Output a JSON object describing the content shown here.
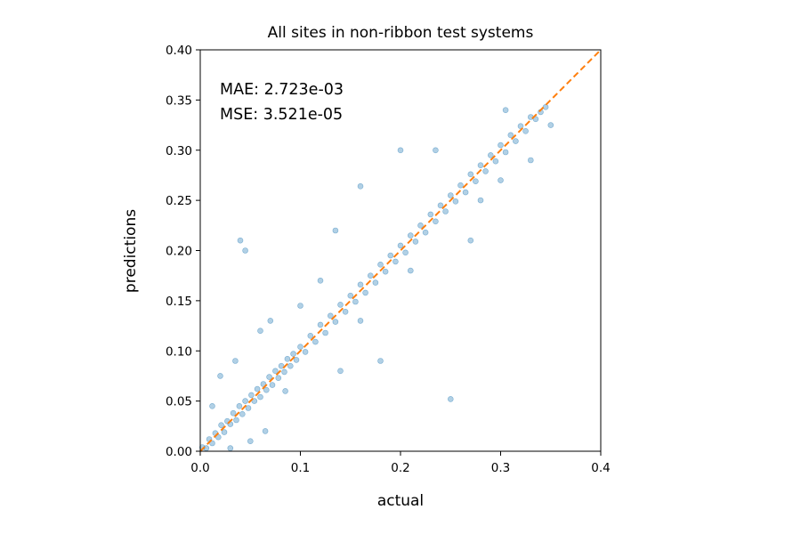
{
  "chart_data": {
    "type": "scatter",
    "title": "All sites in non-ribbon test systems",
    "xlabel": "actual",
    "ylabel": "predictions",
    "xlim": [
      0.0,
      0.4
    ],
    "ylim": [
      0.0,
      0.4
    ],
    "xticks": [
      "0.0",
      "0.1",
      "0.2",
      "0.3",
      "0.4"
    ],
    "xtick_values": [
      0.0,
      0.1,
      0.2,
      0.3,
      0.4
    ],
    "yticks": [
      "0.00",
      "0.05",
      "0.10",
      "0.15",
      "0.20",
      "0.25",
      "0.30",
      "0.35",
      "0.40"
    ],
    "ytick_values": [
      0.0,
      0.05,
      0.1,
      0.15,
      0.2,
      0.25,
      0.3,
      0.35,
      0.4
    ],
    "annotations": [
      "MAE: 2.723e-03",
      "MSE: 3.521e-05"
    ],
    "reference_line": {
      "style": "dashed",
      "color": "#ff7f0e",
      "from": [
        0.0,
        0.0
      ],
      "to": [
        0.4,
        0.4
      ]
    },
    "grid": false,
    "legend": "none",
    "marker_color": "#1f77b4",
    "points": [
      [
        0.002,
        0.004
      ],
      [
        0.006,
        0.003
      ],
      [
        0.009,
        0.012
      ],
      [
        0.012,
        0.008
      ],
      [
        0.015,
        0.018
      ],
      [
        0.018,
        0.014
      ],
      [
        0.021,
        0.026
      ],
      [
        0.024,
        0.019
      ],
      [
        0.027,
        0.03
      ],
      [
        0.03,
        0.027
      ],
      [
        0.033,
        0.038
      ],
      [
        0.036,
        0.031
      ],
      [
        0.039,
        0.045
      ],
      [
        0.042,
        0.037
      ],
      [
        0.045,
        0.05
      ],
      [
        0.048,
        0.043
      ],
      [
        0.051,
        0.056
      ],
      [
        0.054,
        0.05
      ],
      [
        0.057,
        0.062
      ],
      [
        0.06,
        0.054
      ],
      [
        0.063,
        0.067
      ],
      [
        0.066,
        0.061
      ],
      [
        0.069,
        0.074
      ],
      [
        0.072,
        0.066
      ],
      [
        0.075,
        0.08
      ],
      [
        0.078,
        0.073
      ],
      [
        0.081,
        0.085
      ],
      [
        0.084,
        0.079
      ],
      [
        0.087,
        0.092
      ],
      [
        0.09,
        0.085
      ],
      [
        0.093,
        0.097
      ],
      [
        0.096,
        0.091
      ],
      [
        0.1,
        0.104
      ],
      [
        0.105,
        0.099
      ],
      [
        0.11,
        0.115
      ],
      [
        0.115,
        0.109
      ],
      [
        0.12,
        0.126
      ],
      [
        0.125,
        0.118
      ],
      [
        0.13,
        0.135
      ],
      [
        0.135,
        0.129
      ],
      [
        0.14,
        0.146
      ],
      [
        0.145,
        0.139
      ],
      [
        0.15,
        0.155
      ],
      [
        0.155,
        0.149
      ],
      [
        0.16,
        0.166
      ],
      [
        0.165,
        0.158
      ],
      [
        0.17,
        0.175
      ],
      [
        0.175,
        0.168
      ],
      [
        0.18,
        0.186
      ],
      [
        0.185,
        0.179
      ],
      [
        0.19,
        0.195
      ],
      [
        0.195,
        0.189
      ],
      [
        0.2,
        0.205
      ],
      [
        0.205,
        0.198
      ],
      [
        0.21,
        0.215
      ],
      [
        0.215,
        0.209
      ],
      [
        0.22,
        0.225
      ],
      [
        0.225,
        0.218
      ],
      [
        0.23,
        0.236
      ],
      [
        0.235,
        0.229
      ],
      [
        0.24,
        0.245
      ],
      [
        0.245,
        0.239
      ],
      [
        0.25,
        0.255
      ],
      [
        0.255,
        0.249
      ],
      [
        0.26,
        0.265
      ],
      [
        0.265,
        0.258
      ],
      [
        0.27,
        0.276
      ],
      [
        0.275,
        0.269
      ],
      [
        0.28,
        0.285
      ],
      [
        0.285,
        0.279
      ],
      [
        0.29,
        0.295
      ],
      [
        0.295,
        0.289
      ],
      [
        0.3,
        0.305
      ],
      [
        0.305,
        0.298
      ],
      [
        0.31,
        0.315
      ],
      [
        0.315,
        0.309
      ],
      [
        0.32,
        0.324
      ],
      [
        0.325,
        0.319
      ],
      [
        0.33,
        0.333
      ],
      [
        0.335,
        0.331
      ],
      [
        0.34,
        0.338
      ],
      [
        0.345,
        0.343
      ],
      [
        0.35,
        0.325
      ],
      [
        0.012,
        0.045
      ],
      [
        0.02,
        0.075
      ],
      [
        0.035,
        0.09
      ],
      [
        0.045,
        0.2
      ],
      [
        0.04,
        0.21
      ],
      [
        0.06,
        0.12
      ],
      [
        0.085,
        0.06
      ],
      [
        0.12,
        0.17
      ],
      [
        0.135,
        0.22
      ],
      [
        0.16,
        0.264
      ],
      [
        0.18,
        0.09
      ],
      [
        0.25,
        0.052
      ],
      [
        0.2,
        0.3
      ],
      [
        0.235,
        0.3
      ],
      [
        0.27,
        0.21
      ],
      [
        0.3,
        0.27
      ],
      [
        0.305,
        0.34
      ],
      [
        0.33,
        0.29
      ],
      [
        0.14,
        0.08
      ],
      [
        0.16,
        0.13
      ],
      [
        0.21,
        0.18
      ],
      [
        0.28,
        0.25
      ],
      [
        0.1,
        0.145
      ],
      [
        0.07,
        0.13
      ],
      [
        0.05,
        0.01
      ],
      [
        0.03,
        0.003
      ],
      [
        0.065,
        0.02
      ]
    ]
  }
}
